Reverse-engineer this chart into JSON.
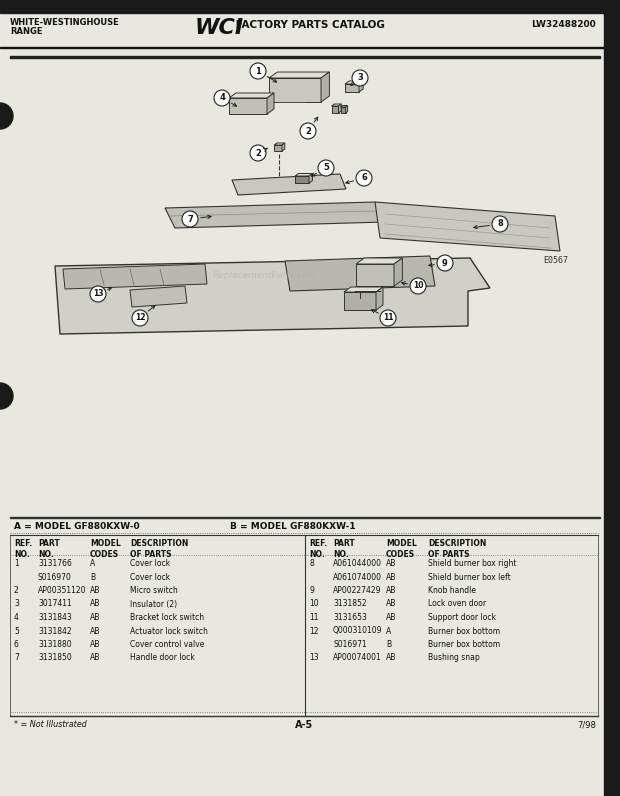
{
  "title_left1": "WHITE-WESTINGHOUSE",
  "title_left2": "RANGE",
  "title_center1": "WCI",
  "title_center2": " FACTORY PARTS CATALOG",
  "title_right": "LW32488200",
  "model_a": "A = MODEL GF880KXW-0",
  "model_b": "B = MODEL GF880KXW-1",
  "diagram_label": "E0567",
  "page_label": "A-5",
  "date_label": "7/98",
  "footnote": "* = Not Illustrated",
  "bg_color": "#e8e8e0",
  "left_parts": [
    [
      "1",
      "3131766",
      "A",
      "Cover lock"
    ],
    [
      "",
      "S016970",
      "B",
      "Cover lock"
    ],
    [
      "2",
      "AP00351120",
      "AB",
      "Micro switch"
    ],
    [
      "3",
      "3017411",
      "AB",
      "Insulator (2)"
    ],
    [
      "4",
      "3131843",
      "AB",
      "Bracket lock switch"
    ],
    [
      "5",
      "3131842",
      "AB",
      "Actuator lock switch"
    ],
    [
      "6",
      "3131880",
      "AB",
      "Cover control valve"
    ],
    [
      "7",
      "3131850",
      "AB",
      "Handle door lock"
    ]
  ],
  "right_parts": [
    [
      "8",
      "A061044000",
      "AB",
      "Shield burner box right"
    ],
    [
      "",
      "A061074000",
      "AB",
      "Shield burner box left"
    ],
    [
      "9",
      "AP00227429",
      "AB",
      "Knob handle"
    ],
    [
      "10",
      "3131852",
      "AB",
      "Lock oven door"
    ],
    [
      "11",
      "3131653",
      "AB",
      "Support door lock"
    ],
    [
      "12",
      "Q000310109",
      "A",
      "Burner box bottom"
    ],
    [
      "",
      "S016971",
      "B",
      "Burner box bottom"
    ],
    [
      "13",
      "AP00074001",
      "AB",
      "Bushing snap"
    ]
  ]
}
